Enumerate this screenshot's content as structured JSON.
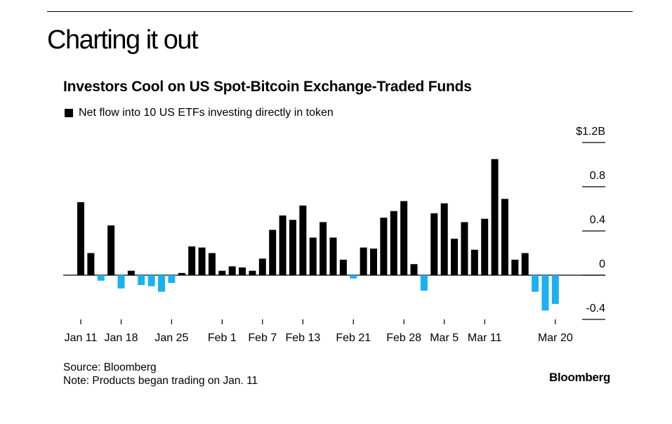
{
  "headline": "Charting it out",
  "chart_data": {
    "type": "bar",
    "title": "Investors Cool on US Spot-Bitcoin Exchange-Traded Funds",
    "legend": [
      "Net flow into 10 US ETFs investing directly in token"
    ],
    "ylabel": "$ billions",
    "ylim": [
      -0.4,
      1.2
    ],
    "y_ticks": [
      {
        "value": 1.2,
        "label": "$1.2B"
      },
      {
        "value": 0.8,
        "label": "0.8"
      },
      {
        "value": 0.4,
        "label": "0.4"
      },
      {
        "value": 0,
        "label": "0"
      },
      {
        "value": -0.4,
        "label": "-0.4"
      }
    ],
    "x_tick_labels": [
      "Jan 11",
      "Jan 18",
      "Jan 25",
      "Feb 1",
      "Feb 7",
      "Feb 13",
      "Feb 21",
      "Feb 28",
      "Mar 5",
      "Mar 11",
      "Mar 20"
    ],
    "x_tick_positions": [
      0,
      4,
      9,
      14,
      18,
      22,
      27,
      32,
      36,
      40,
      47
    ],
    "colors": {
      "inflow": "#000000",
      "outflow": "#1bb1f0"
    },
    "series": [
      {
        "name": "Net flow into 10 US ETFs investing directly in token",
        "values": [
          0.66,
          0.2,
          -0.05,
          0.45,
          -0.12,
          0.04,
          -0.09,
          -0.1,
          -0.15,
          -0.07,
          0.02,
          0.26,
          0.25,
          0.2,
          0.04,
          0.08,
          0.07,
          0.04,
          0.15,
          0.41,
          0.54,
          0.5,
          0.63,
          0.34,
          0.48,
          0.34,
          0.14,
          -0.03,
          0.25,
          0.24,
          0.52,
          0.58,
          0.67,
          0.1,
          -0.14,
          0.56,
          0.65,
          0.33,
          0.48,
          0.23,
          0.51,
          1.05,
          0.69,
          0.14,
          0.2,
          -0.15,
          -0.32,
          -0.26
        ]
      }
    ]
  },
  "footer": {
    "source": "Source: Bloomberg",
    "note": "Note: Products began trading on Jan. 11"
  },
  "brand": "Bloomberg"
}
